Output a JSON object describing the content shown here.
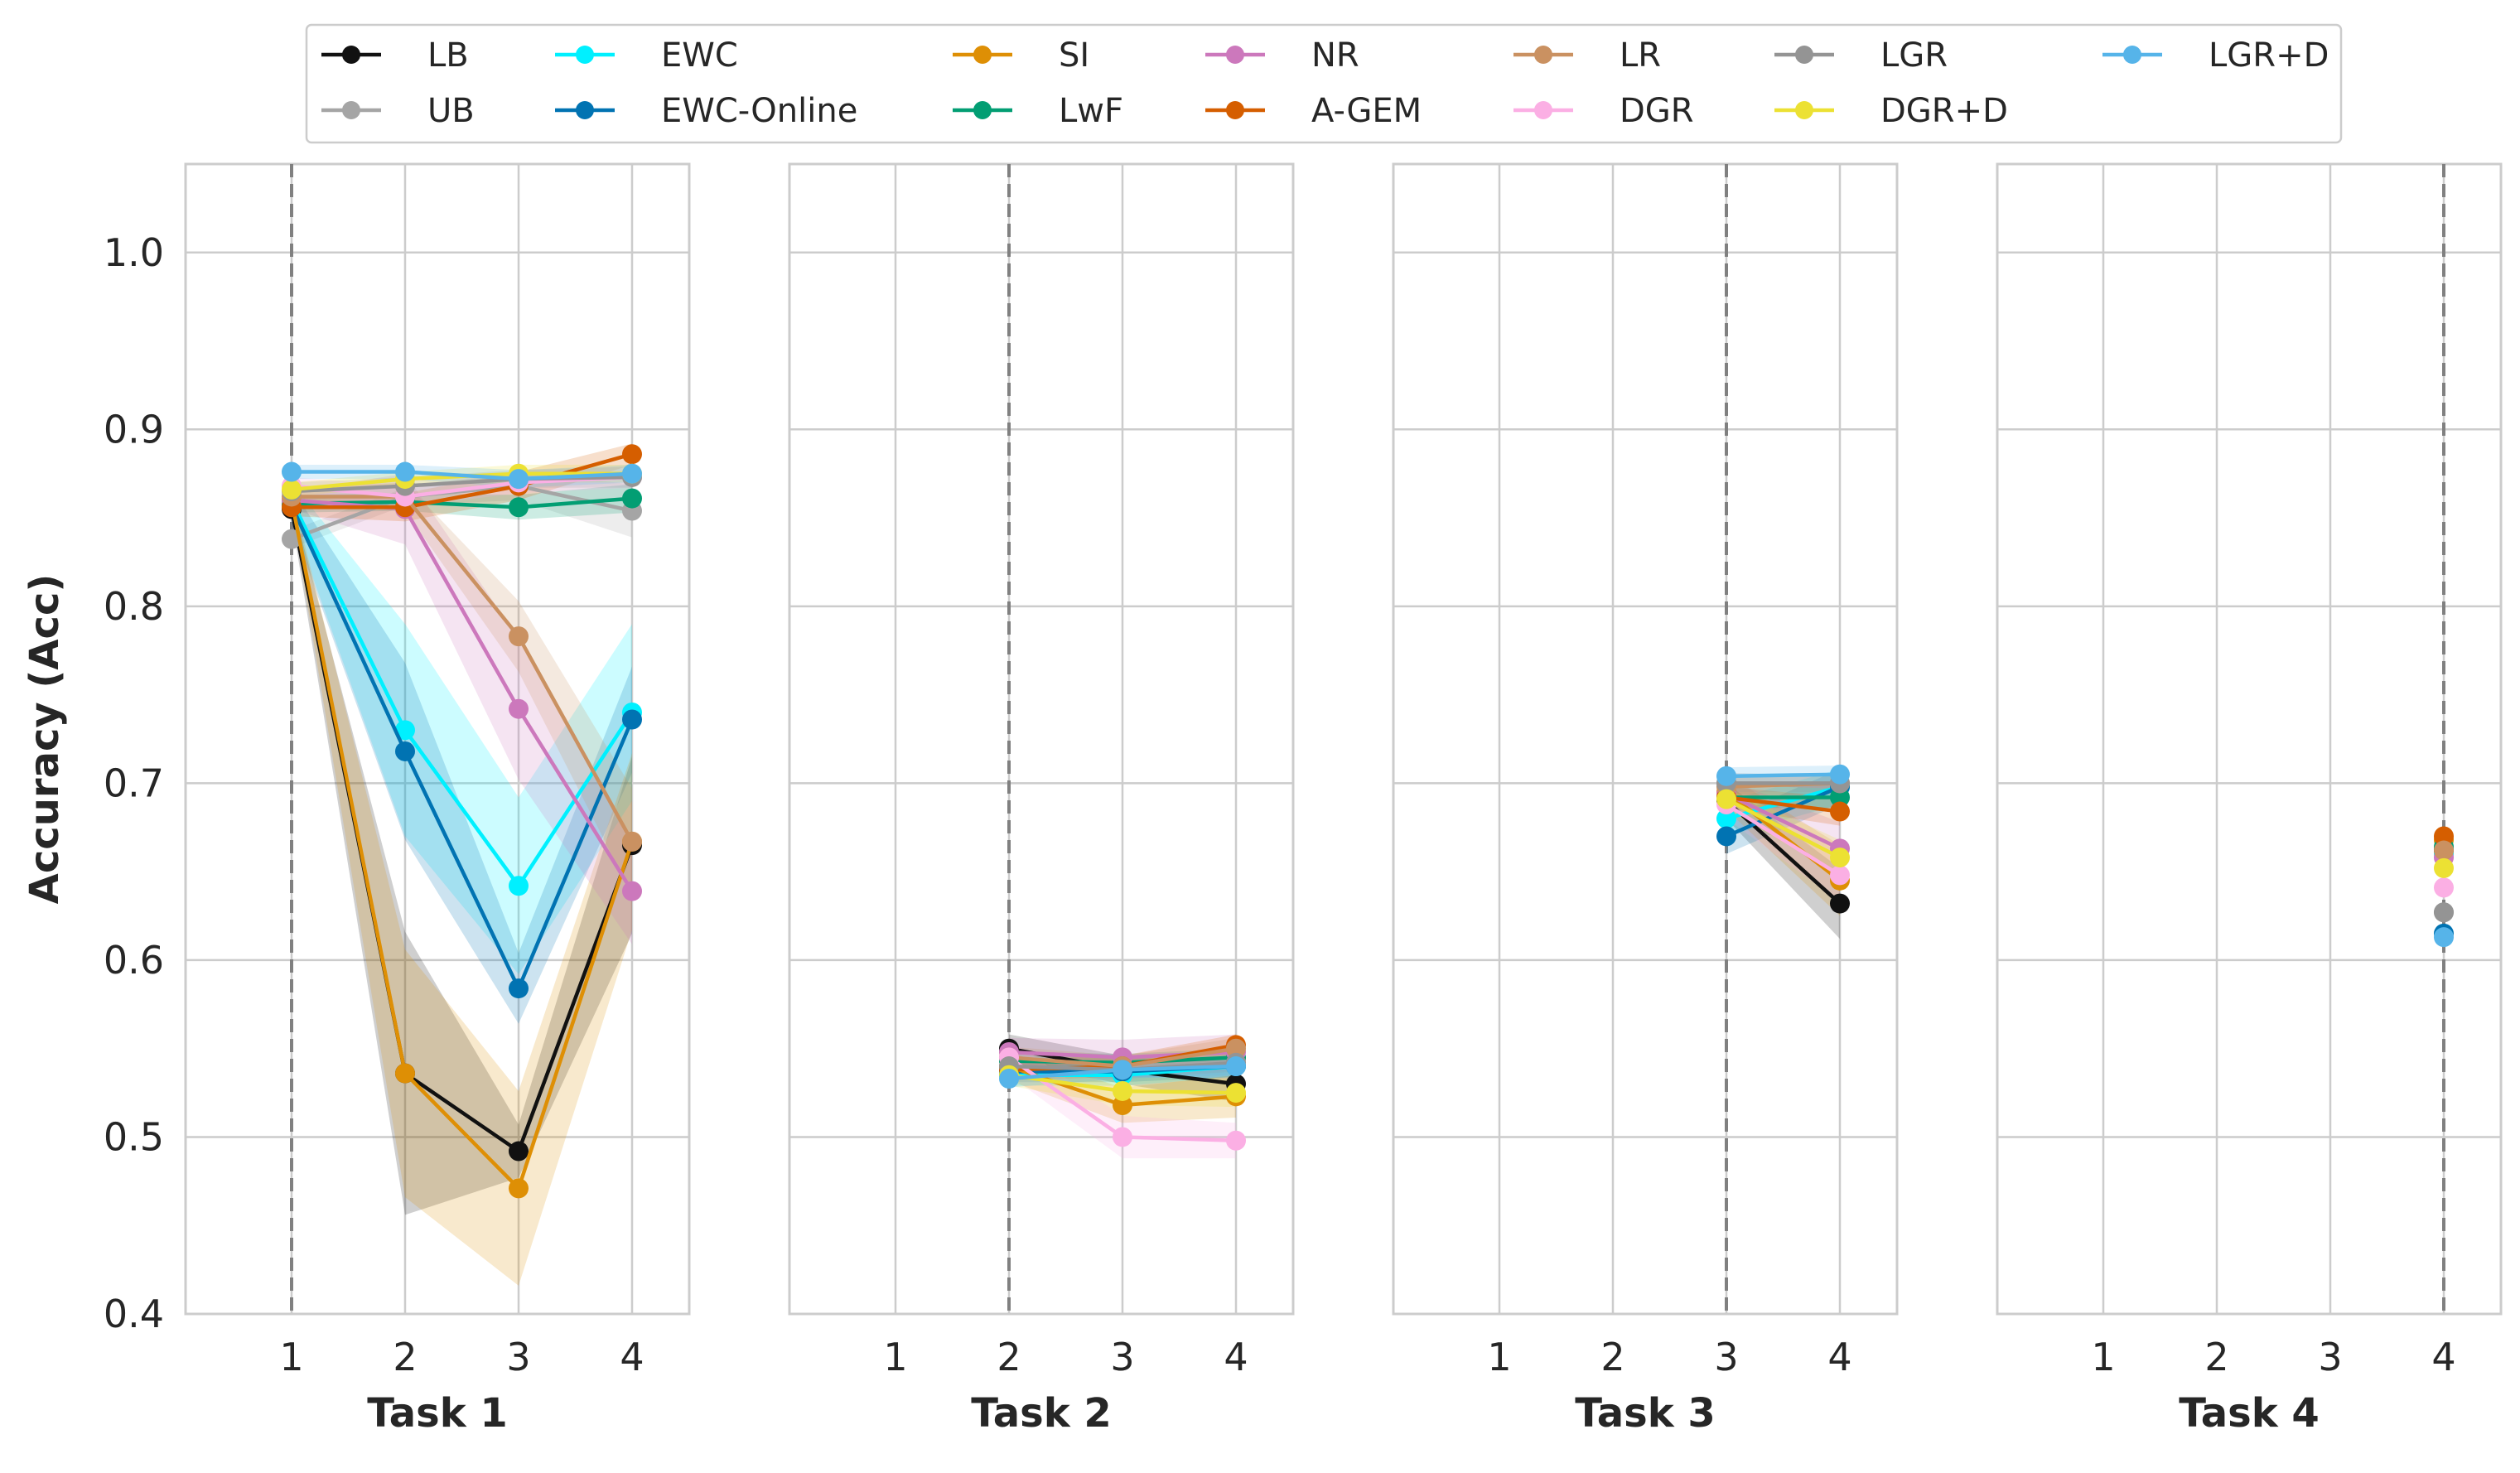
{
  "chart_data": {
    "type": "line",
    "ylabel": "Accuracy (Acc)",
    "ylim": [
      0.4,
      1.05
    ],
    "yticks": [
      "0.4",
      "0.5",
      "0.6",
      "0.7",
      "0.8",
      "0.9",
      "1.0"
    ],
    "xticks": [
      "1",
      "2",
      "3",
      "4"
    ],
    "grid": true,
    "legend_position": "top",
    "series_styles": [
      {
        "name": "LB",
        "color": "#111111"
      },
      {
        "name": "UB",
        "color": "#a5a5a5"
      },
      {
        "name": "EWC",
        "color": "#00f0ff"
      },
      {
        "name": "EWC-Online",
        "color": "#0173b2"
      },
      {
        "name": "SI",
        "color": "#de8f05"
      },
      {
        "name": "LwF",
        "color": "#029e73"
      },
      {
        "name": "NR",
        "color": "#cc78bc"
      },
      {
        "name": "A-GEM",
        "color": "#d55e00"
      },
      {
        "name": "LR",
        "color": "#ca9161"
      },
      {
        "name": "DGR",
        "color": "#fbafe4"
      },
      {
        "name": "LGR",
        "color": "#949494"
      },
      {
        "name": "DGR+D",
        "color": "#ece133"
      },
      {
        "name": "LGR+D",
        "color": "#56b4e9"
      }
    ],
    "panels": [
      {
        "title": "Task 1",
        "start_task": 1,
        "series": [
          {
            "name": "LB",
            "values": [
              0.855,
              0.536,
              0.492,
              0.665
            ],
            "err": [
              0.005,
              0.08,
              0.015,
              0.05
            ]
          },
          {
            "name": "UB",
            "values": [
              0.838,
              0.862,
              0.868,
              0.854
            ],
            "err": [
              0.005,
              0.005,
              0.008,
              0.015
            ]
          },
          {
            "name": "EWC",
            "values": [
              0.86,
              0.73,
              0.642,
              0.74
            ],
            "err": [
              0.01,
              0.06,
              0.05,
              0.05
            ]
          },
          {
            "name": "EWC-Online",
            "values": [
              0.857,
              0.718,
              0.584,
              0.736
            ],
            "err": [
              0.01,
              0.05,
              0.02,
              0.03
            ]
          },
          {
            "name": "SI",
            "values": [
              0.86,
              0.536,
              0.471,
              0.667
            ],
            "err": [
              0.005,
              0.07,
              0.055,
              0.05
            ]
          },
          {
            "name": "LwF",
            "values": [
              0.858,
              0.859,
              0.856,
              0.861
            ],
            "err": [
              0.005,
              0.005,
              0.007,
              0.008
            ]
          },
          {
            "name": "NR",
            "values": [
              0.86,
              0.855,
              0.742,
              0.639
            ],
            "err": [
              0.005,
              0.02,
              0.04,
              0.03
            ]
          },
          {
            "name": "A-GEM",
            "values": [
              0.856,
              0.856,
              0.868,
              0.886
            ],
            "err": [
              0.005,
              0.008,
              0.008,
              0.006
            ]
          },
          {
            "name": "LR",
            "values": [
              0.862,
              0.862,
              0.783,
              0.667
            ],
            "err": [
              0.005,
              0.008,
              0.02,
              0.03
            ]
          },
          {
            "name": "DGR",
            "values": [
              0.868,
              0.862,
              0.87,
              0.873
            ],
            "err": [
              0.005,
              0.006,
              0.006,
              0.006
            ]
          },
          {
            "name": "LGR",
            "values": [
              0.865,
              0.868,
              0.872,
              0.873
            ],
            "err": [
              0.005,
              0.005,
              0.005,
              0.006
            ]
          },
          {
            "name": "DGR+D",
            "values": [
              0.866,
              0.872,
              0.875,
              0.875
            ],
            "err": [
              0.004,
              0.004,
              0.005,
              0.005
            ]
          },
          {
            "name": "LGR+D",
            "values": [
              0.876,
              0.876,
              0.872,
              0.875
            ],
            "err": [
              0.004,
              0.004,
              0.005,
              0.005
            ]
          }
        ]
      },
      {
        "title": "Task 2",
        "start_task": 2,
        "series": [
          {
            "name": "LB",
            "values": [
              0.55,
              0.538,
              0.53
            ],
            "err": [
              0.008,
              0.008,
              0.01
            ]
          },
          {
            "name": "UB",
            "values": [
              0.538,
              0.54,
              0.544
            ],
            "err": [
              0.005,
              0.005,
              0.005
            ]
          },
          {
            "name": "EWC",
            "values": [
              0.535,
              0.535,
              0.54
            ],
            "err": [
              0.006,
              0.006,
              0.006
            ]
          },
          {
            "name": "EWC-Online",
            "values": [
              0.537,
              0.537,
              0.54
            ],
            "err": [
              0.006,
              0.006,
              0.006
            ]
          },
          {
            "name": "SI",
            "values": [
              0.54,
              0.518,
              0.523
            ],
            "err": [
              0.008,
              0.01,
              0.012
            ]
          },
          {
            "name": "LwF",
            "values": [
              0.543,
              0.542,
              0.545
            ],
            "err": [
              0.005,
              0.005,
              0.005
            ]
          },
          {
            "name": "NR",
            "values": [
              0.548,
              0.545,
              0.548
            ],
            "err": [
              0.008,
              0.01,
              0.01
            ]
          },
          {
            "name": "A-GEM",
            "values": [
              0.538,
              0.54,
              0.552
            ],
            "err": [
              0.006,
              0.006,
              0.006
            ]
          },
          {
            "name": "LR",
            "values": [
              0.545,
              0.54,
              0.55
            ],
            "err": [
              0.006,
              0.006,
              0.006
            ]
          },
          {
            "name": "DGR",
            "values": [
              0.545,
              0.5,
              0.498
            ],
            "err": [
              0.01,
              0.012,
              0.01
            ]
          },
          {
            "name": "LGR",
            "values": [
              0.54,
              0.538,
              0.542
            ],
            "err": [
              0.005,
              0.005,
              0.005
            ]
          },
          {
            "name": "DGR+D",
            "values": [
              0.535,
              0.526,
              0.525
            ],
            "err": [
              0.006,
              0.008,
              0.008
            ]
          },
          {
            "name": "LGR+D",
            "values": [
              0.533,
              0.538,
              0.54
            ],
            "err": [
              0.005,
              0.005,
              0.005
            ]
          }
        ]
      },
      {
        "title": "Task 3",
        "start_task": 3,
        "series": [
          {
            "name": "LB",
            "values": [
              0.69,
              0.632
            ],
            "err": [
              0.01,
              0.02
            ]
          },
          {
            "name": "UB",
            "values": [
              0.7,
              0.698
            ],
            "err": [
              0.006,
              0.006
            ]
          },
          {
            "name": "EWC",
            "values": [
              0.68,
              0.698
            ],
            "err": [
              0.01,
              0.01
            ]
          },
          {
            "name": "EWC-Online",
            "values": [
              0.67,
              0.698
            ],
            "err": [
              0.01,
              0.01
            ]
          },
          {
            "name": "SI",
            "values": [
              0.695,
              0.645
            ],
            "err": [
              0.01,
              0.02
            ]
          },
          {
            "name": "LwF",
            "values": [
              0.692,
              0.692
            ],
            "err": [
              0.006,
              0.006
            ]
          },
          {
            "name": "NR",
            "values": [
              0.694,
              0.663
            ],
            "err": [
              0.008,
              0.015
            ]
          },
          {
            "name": "A-GEM",
            "values": [
              0.692,
              0.684
            ],
            "err": [
              0.006,
              0.008
            ]
          },
          {
            "name": "LR",
            "values": [
              0.698,
              0.7
            ],
            "err": [
              0.006,
              0.006
            ]
          },
          {
            "name": "DGR",
            "values": [
              0.688,
              0.648
            ],
            "err": [
              0.008,
              0.015
            ]
          },
          {
            "name": "LGR",
            "values": [
              0.7,
              0.7
            ],
            "err": [
              0.005,
              0.005
            ]
          },
          {
            "name": "DGR+D",
            "values": [
              0.691,
              0.658
            ],
            "err": [
              0.006,
              0.01
            ]
          },
          {
            "name": "LGR+D",
            "values": [
              0.704,
              0.705
            ],
            "err": [
              0.005,
              0.005
            ]
          }
        ]
      },
      {
        "title": "Task 4",
        "start_task": 4,
        "series": [
          {
            "name": "LB",
            "values": [
              0.662
            ],
            "err": [
              0
            ]
          },
          {
            "name": "UB",
            "values": [
              0.627
            ],
            "err": [
              0
            ]
          },
          {
            "name": "EWC",
            "values": [
              0.66
            ],
            "err": [
              0
            ]
          },
          {
            "name": "EWC-Online",
            "values": [
              0.615
            ],
            "err": [
              0
            ]
          },
          {
            "name": "SI",
            "values": [
              0.668
            ],
            "err": [
              0
            ]
          },
          {
            "name": "LwF",
            "values": [
              0.664
            ],
            "err": [
              0
            ]
          },
          {
            "name": "NR",
            "values": [
              0.658
            ],
            "err": [
              0
            ]
          },
          {
            "name": "A-GEM",
            "values": [
              0.67
            ],
            "err": [
              0
            ]
          },
          {
            "name": "LR",
            "values": [
              0.662
            ],
            "err": [
              0
            ]
          },
          {
            "name": "DGR",
            "values": [
              0.641
            ],
            "err": [
              0
            ]
          },
          {
            "name": "LGR",
            "values": [
              0.627
            ],
            "err": [
              0
            ]
          },
          {
            "name": "DGR+D",
            "values": [
              0.652
            ],
            "err": [
              0
            ]
          },
          {
            "name": "LGR+D",
            "values": [
              0.613
            ],
            "err": [
              0
            ]
          }
        ]
      }
    ]
  }
}
